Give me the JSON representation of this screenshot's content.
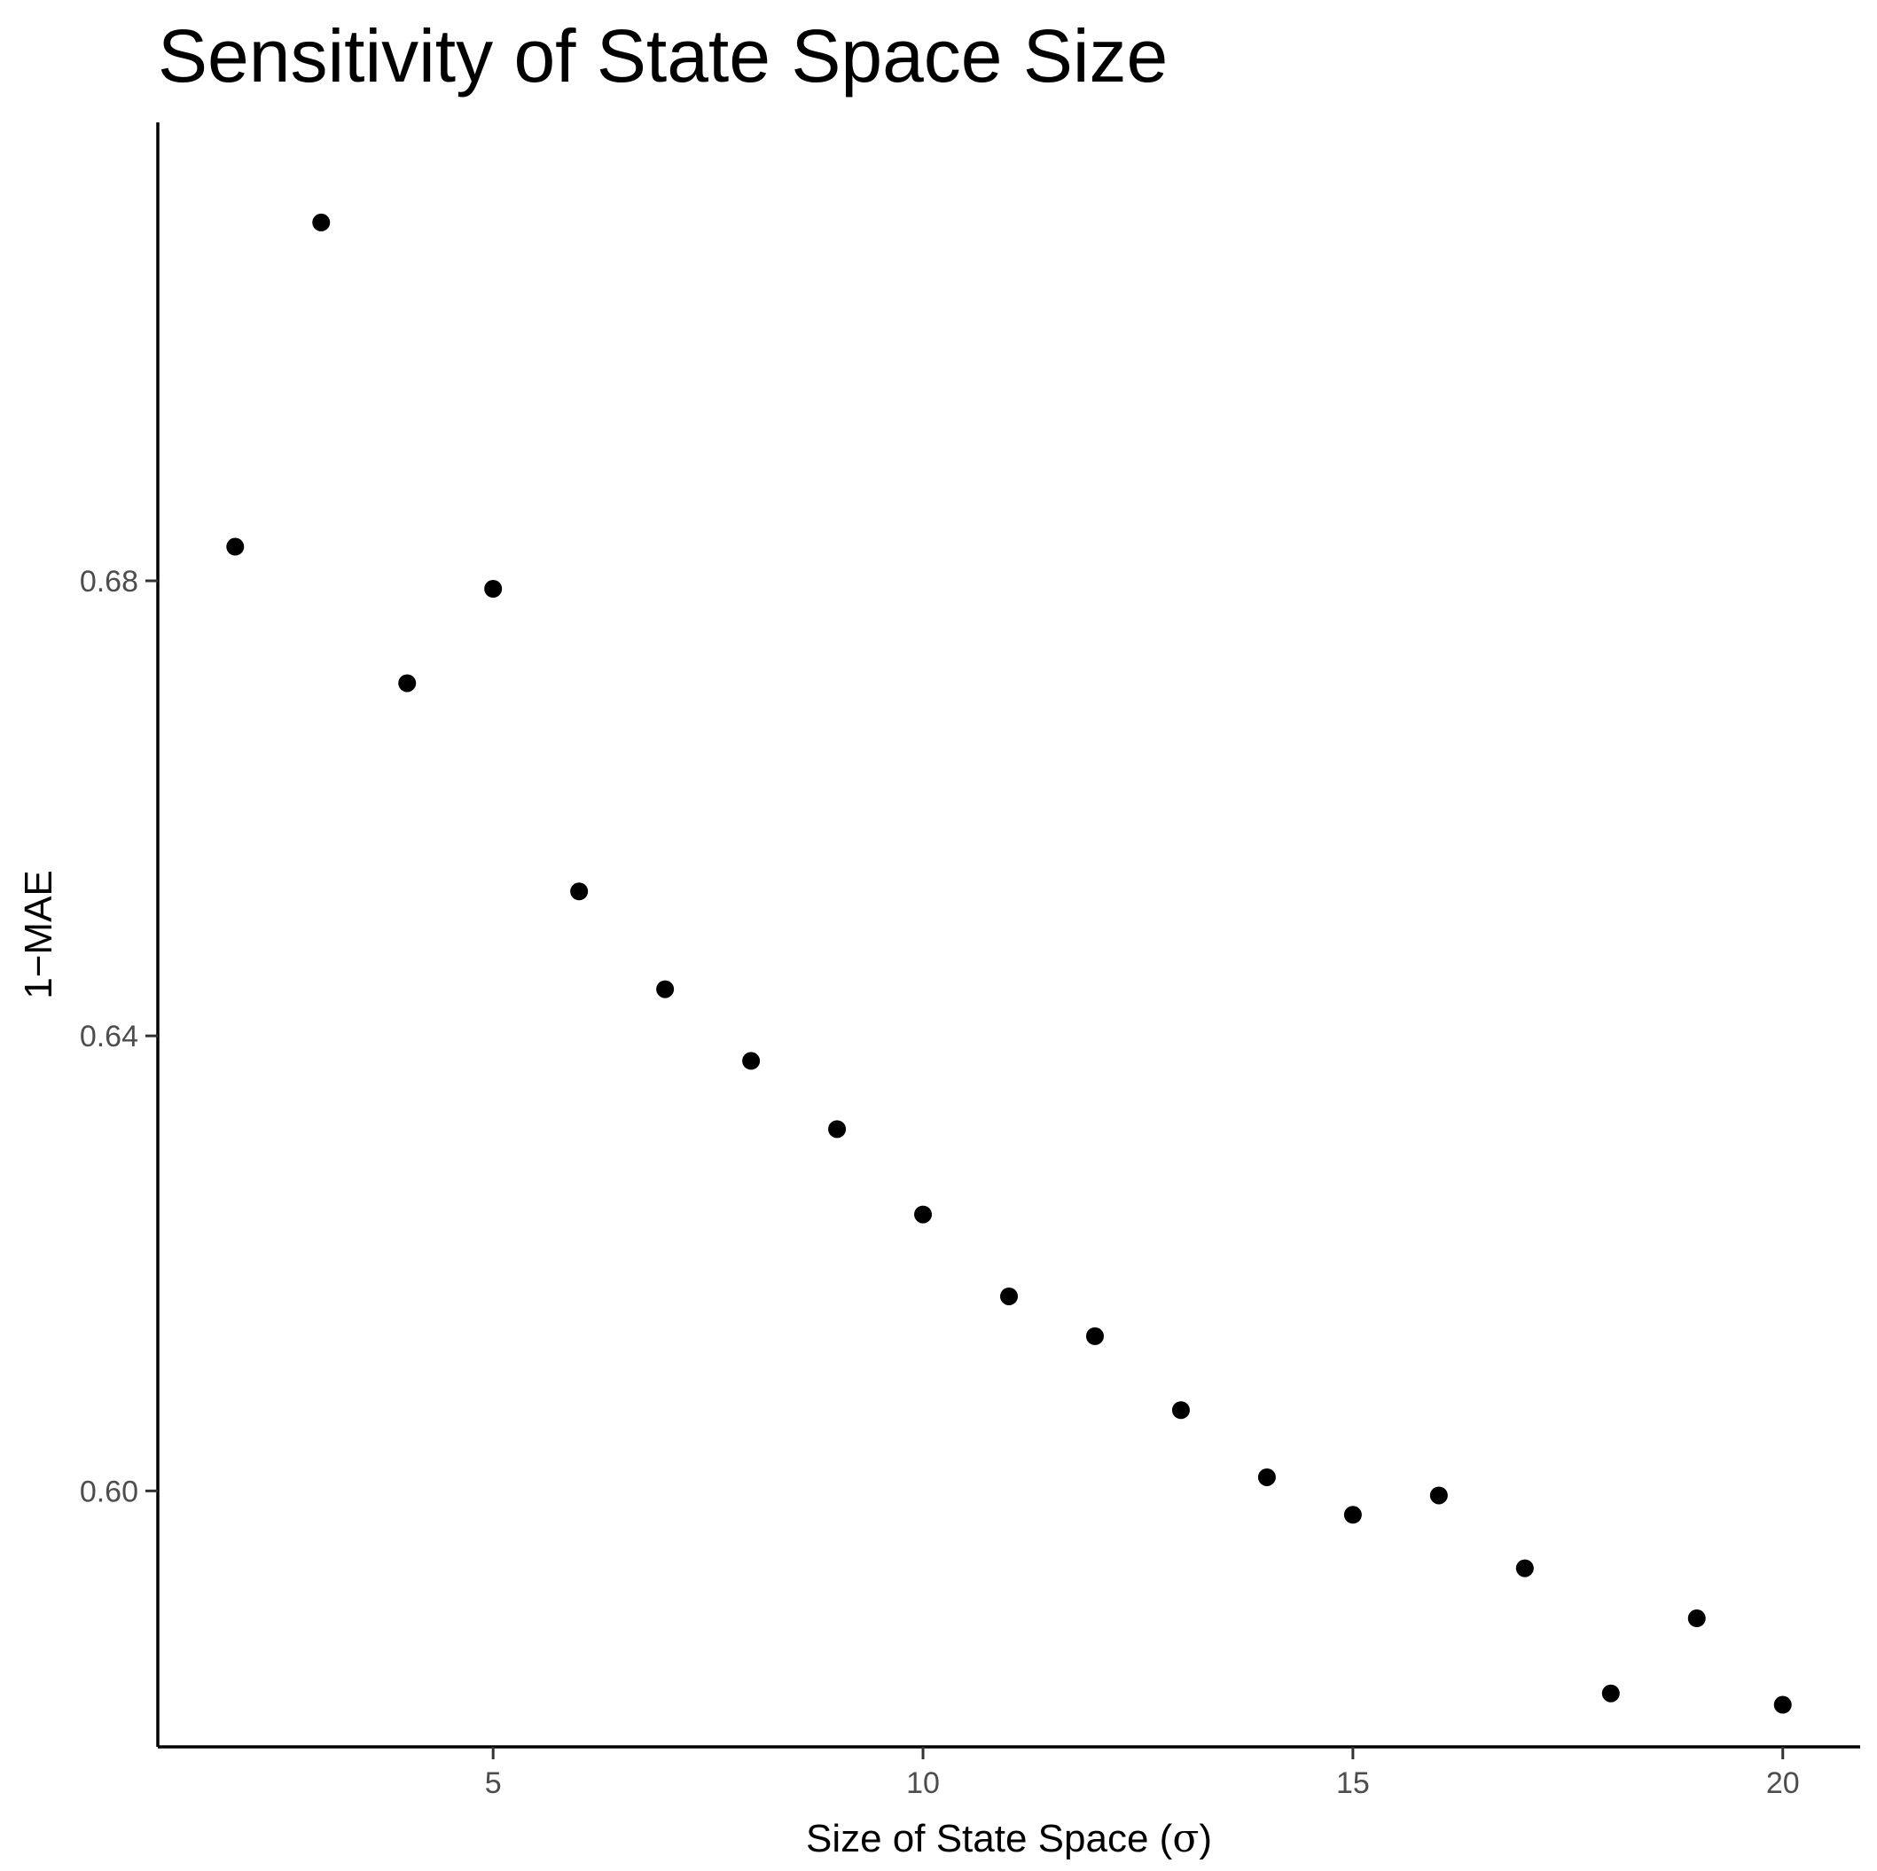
{
  "chart_data": {
    "type": "scatter",
    "title": "Sensitivity of State Space Size",
    "xlabel": "Size of State Space (σ)",
    "xlabel_prefix": "Size of State Space (",
    "xlabel_symbol": "σ",
    "xlabel_suffix": ")",
    "ylabel": "1−MAE",
    "x_ticks": [
      5,
      10,
      15,
      20
    ],
    "x_tick_labels": [
      "5",
      "10",
      "15",
      "20"
    ],
    "y_ticks": [
      0.6,
      0.64,
      0.68
    ],
    "y_tick_labels": [
      "0.60",
      "0.64",
      "0.68"
    ],
    "xlim": [
      1.1,
      20.9
    ],
    "ylim": [
      0.5775,
      0.7203
    ],
    "grid": false,
    "legend": "none",
    "point_color": "#000000",
    "points": [
      {
        "x": 2,
        "y": 0.683
      },
      {
        "x": 3,
        "y": 0.7115
      },
      {
        "x": 4,
        "y": 0.671
      },
      {
        "x": 5,
        "y": 0.6793
      },
      {
        "x": 6,
        "y": 0.6527
      },
      {
        "x": 7,
        "y": 0.6441
      },
      {
        "x": 8,
        "y": 0.6378
      },
      {
        "x": 9,
        "y": 0.6318
      },
      {
        "x": 10,
        "y": 0.6243
      },
      {
        "x": 11,
        "y": 0.6171
      },
      {
        "x": 12,
        "y": 0.6136
      },
      {
        "x": 13,
        "y": 0.6071
      },
      {
        "x": 14,
        "y": 0.6012
      },
      {
        "x": 15,
        "y": 0.5979
      },
      {
        "x": 16,
        "y": 0.5996
      },
      {
        "x": 17,
        "y": 0.5932
      },
      {
        "x": 18,
        "y": 0.5822
      },
      {
        "x": 19,
        "y": 0.5888
      },
      {
        "x": 20,
        "y": 0.5812
      }
    ]
  }
}
